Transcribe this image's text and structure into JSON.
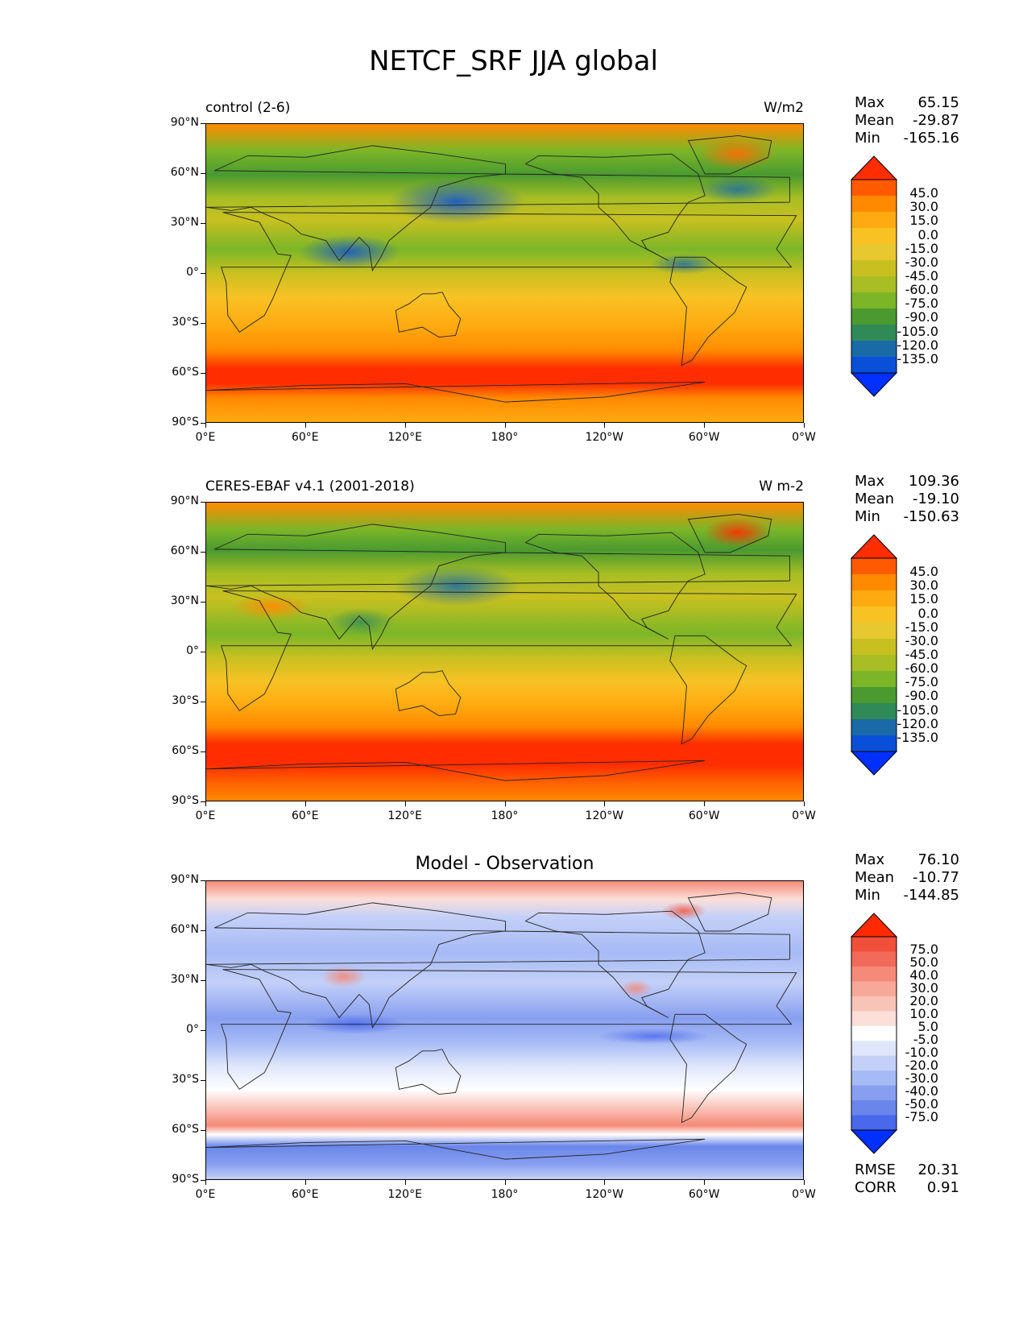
{
  "figure": {
    "title": "NETCF_SRF JJA global"
  },
  "axes": {
    "lat_labels": [
      "90°N",
      "60°N",
      "30°N",
      "0°",
      "30°S",
      "60°S",
      "90°S"
    ],
    "lon_labels": [
      "0°E",
      "60°E",
      "120°E",
      "180°",
      "120°W",
      "60°W",
      "0°W"
    ]
  },
  "panels": [
    {
      "title_left": "control (2-6)",
      "title_right": "W/m2",
      "title_center": "",
      "stats": {
        "max_label": "Max",
        "max": "65.15",
        "mean_label": "Mean",
        "mean": "-29.87",
        "min_label": "Min",
        "min": "-165.16"
      },
      "colorbar": {
        "labels": [
          "45.0",
          "30.0",
          "15.0",
          "0.0",
          "-15.0",
          "-30.0",
          "-45.0",
          "-60.0",
          "-75.0",
          "-90.0",
          "-105.0",
          "-120.0",
          "-135.0"
        ],
        "colors": [
          "#ff2d00",
          "#ff5a00",
          "#ff8a00",
          "#ffaa10",
          "#f8c225",
          "#e8c830",
          "#c8c020",
          "#a8be24",
          "#7cb628",
          "#4a9a30",
          "#2f8a58",
          "#1a6aa8",
          "#0a4fd8",
          "#0030ff"
        ]
      }
    },
    {
      "title_left": "CERES-EBAF v4.1 (2001-2018)",
      "title_right": "W m-2",
      "title_center": "",
      "stats": {
        "max_label": "Max",
        "max": "109.36",
        "mean_label": "Mean",
        "mean": "-19.10",
        "min_label": "Min",
        "min": "-150.63"
      },
      "colorbar": {
        "labels": [
          "45.0",
          "30.0",
          "15.0",
          "0.0",
          "-15.0",
          "-30.0",
          "-45.0",
          "-60.0",
          "-75.0",
          "-90.0",
          "-105.0",
          "-120.0",
          "-135.0"
        ],
        "colors": [
          "#ff2d00",
          "#ff5a00",
          "#ff8a00",
          "#ffaa10",
          "#f8c225",
          "#e8c830",
          "#c8c020",
          "#a8be24",
          "#7cb628",
          "#4a9a30",
          "#2f8a58",
          "#1a6aa8",
          "#0a4fd8",
          "#0030ff"
        ]
      }
    },
    {
      "title_left": "",
      "title_right": "",
      "title_center": "Model - Observation",
      "stats": {
        "max_label": "Max",
        "max": "76.10",
        "mean_label": "Mean",
        "mean": "-10.77",
        "min_label": "Min",
        "min": "-144.85"
      },
      "colorbar": {
        "labels": [
          "75.0",
          "50.0",
          "40.0",
          "30.0",
          "20.0",
          "10.0",
          "5.0",
          "-5.0",
          "-10.0",
          "-20.0",
          "-30.0",
          "-40.0",
          "-50.0",
          "-75.0"
        ],
        "colors": [
          "#ff2a00",
          "#f0503a",
          "#f26a5a",
          "#f58a78",
          "#f7a898",
          "#f9c4b8",
          "#fbdfd8",
          "#ffffff",
          "#dfe6fb",
          "#c4d0f8",
          "#a6baf5",
          "#889fef",
          "#6a86ea",
          "#4a68ec",
          "#0030ff"
        ]
      },
      "extra": {
        "rmse_label": "RMSE",
        "rmse": "20.31",
        "corr_label": "CORR",
        "corr": "0.91"
      }
    }
  ]
}
